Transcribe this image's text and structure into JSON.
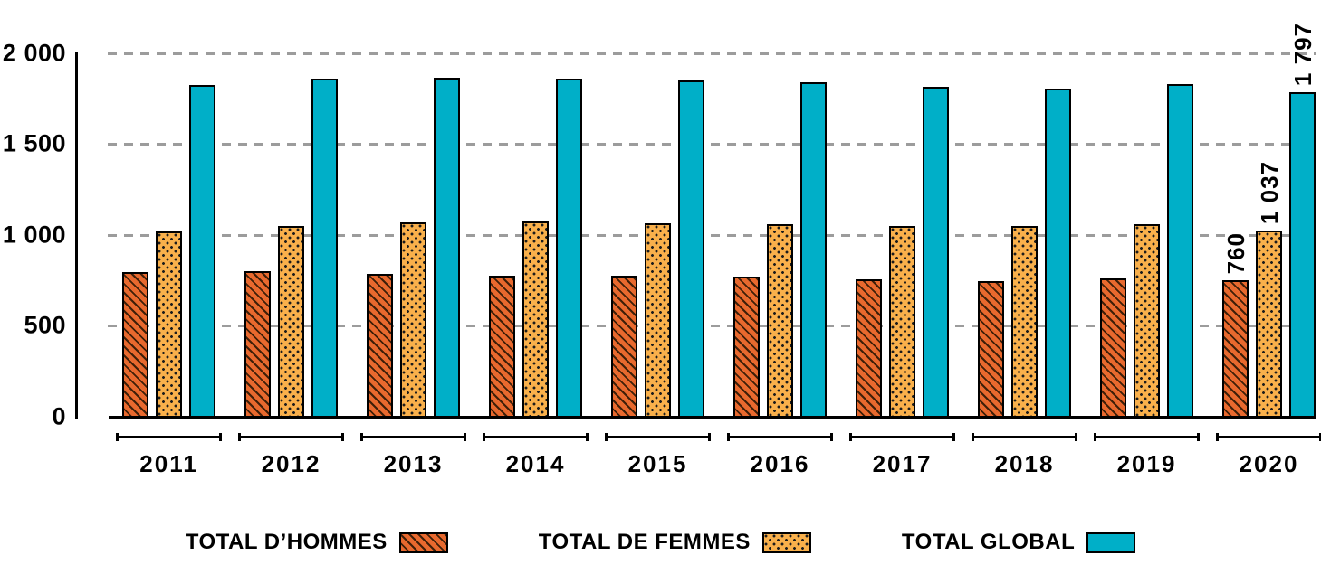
{
  "chart_data": {
    "type": "bar",
    "title": "",
    "xlabel": "",
    "ylabel": "",
    "categories": [
      "2011",
      "2012",
      "2013",
      "2014",
      "2015",
      "2016",
      "2017",
      "2018",
      "2019",
      "2020"
    ],
    "series": [
      {
        "name": "TOTAL D’HOMMES",
        "color": "#e8692e",
        "pattern": "diagonal-hatch",
        "values": [
          805,
          810,
          795,
          785,
          785,
          780,
          765,
          755,
          770,
          760
        ]
      },
      {
        "name": "TOTAL DE FEMMES",
        "color": "#f9b04b",
        "pattern": "dots",
        "values": [
          1030,
          1060,
          1080,
          1085,
          1075,
          1070,
          1060,
          1060,
          1070,
          1037
        ]
      },
      {
        "name": "TOTAL GLOBAL",
        "color": "#00afc8",
        "pattern": "solid",
        "values": [
          1835,
          1870,
          1875,
          1870,
          1860,
          1850,
          1825,
          1815,
          1840,
          1797
        ]
      }
    ],
    "data_labels": {
      "category": "2020",
      "values": [
        "760",
        "1 037",
        "1 797"
      ]
    },
    "ylim": [
      0,
      2000
    ],
    "yticks": [
      0,
      500,
      1000,
      1500,
      2000
    ],
    "ytick_labels": [
      "0",
      "500",
      "1 000",
      "1 500",
      "2 000"
    ],
    "grid": "horizontal-dashed",
    "grid_color": "#9c9c9c",
    "legend_position": "bottom"
  }
}
